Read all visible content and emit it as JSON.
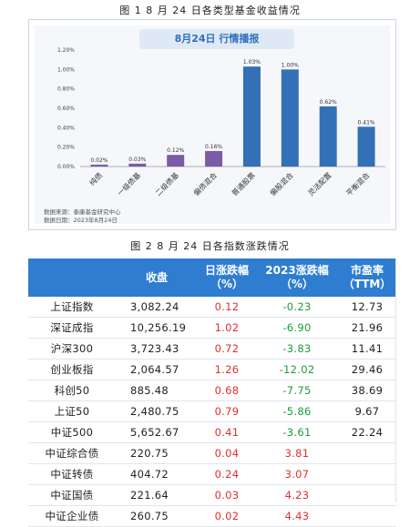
{
  "figure1_title": "图 1  8 月 24 日各类型基金收益情况",
  "figure2_title": "图 2  8 月 24 日各指数涨跌情况",
  "chart_data": {
    "type": "bar",
    "title": "8月24日  行情播报",
    "categories": [
      "纯债",
      "一级债基",
      "二级债基",
      "偏债混合",
      "普通股票",
      "偏股混合",
      "灵活配置",
      "平衡混合"
    ],
    "values": [
      0.02,
      0.03,
      0.12,
      0.16,
      1.03,
      1.0,
      0.62,
      0.41
    ],
    "value_labels": [
      "0.02%",
      "0.03%",
      "0.12%",
      "0.16%",
      "1.03%",
      "1.00%",
      "0.62%",
      "0.41%"
    ],
    "yticks": [
      "0.00%",
      "0.20%",
      "0.40%",
      "0.60%",
      "0.80%",
      "1.00%",
      "1.20%"
    ],
    "ylim": [
      0,
      1.2
    ],
    "colors": [
      "#7b5aa6",
      "#7b5aa6",
      "#7b5aa6",
      "#7b5aa6",
      "#3470b6",
      "#3470b6",
      "#3470b6",
      "#3470b6"
    ],
    "source_line1": "数据来源：泰康基金研究中心",
    "source_line2": "数据日期：2023年8月24日",
    "grid": false
  },
  "table": {
    "headers": {
      "col1": "",
      "col2": "收盘",
      "col3_line1": "日涨跌幅",
      "col3_line2": "（%）",
      "col4_line1": "2023涨跌幅",
      "col4_line2": "（%）",
      "col5_line1": "市盈率",
      "col5_line2": "（TTM）"
    },
    "header_color": "#2f7dd0",
    "up_color": "#e0312d",
    "down_color": "#1a9e3a",
    "rows": [
      {
        "name": "上证指数",
        "close": "3,082.24",
        "day": "0.12",
        "ytd": "-0.23",
        "pe": "12.73"
      },
      {
        "name": "深证成指",
        "close": "10,256.19",
        "day": "1.02",
        "ytd": "-6.90",
        "pe": "21.96"
      },
      {
        "name": "沪深300",
        "close": "3,723.43",
        "day": "0.72",
        "ytd": "-3.83",
        "pe": "11.41"
      },
      {
        "name": "创业板指",
        "close": "2,064.57",
        "day": "1.26",
        "ytd": "-12.02",
        "pe": "29.46"
      },
      {
        "name": "科创50",
        "close": "885.48",
        "day": "0.68",
        "ytd": "-7.75",
        "pe": "38.69"
      },
      {
        "name": "上证50",
        "close": "2,480.75",
        "day": "0.79",
        "ytd": "-5.86",
        "pe": "9.67"
      },
      {
        "name": "中证500",
        "close": "5,652.67",
        "day": "0.41",
        "ytd": "-3.61",
        "pe": "22.24"
      },
      {
        "name": "中证综合债",
        "close": "220.75",
        "day": "0.04",
        "ytd": "3.81",
        "pe": ""
      },
      {
        "name": "中证转债",
        "close": "404.72",
        "day": "0.24",
        "ytd": "3.07",
        "pe": ""
      },
      {
        "name": "中证国债",
        "close": "221.64",
        "day": "0.03",
        "ytd": "4.23",
        "pe": ""
      },
      {
        "name": "中证企业债",
        "close": "260.75",
        "day": "0.02",
        "ytd": "4.43",
        "pe": ""
      }
    ]
  }
}
